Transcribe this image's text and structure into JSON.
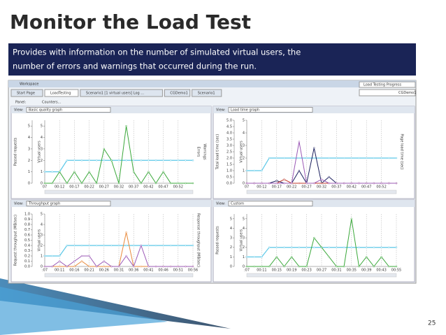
{
  "slide": {
    "title": "Monitor the Load Test",
    "description": [
      "Provides with information on the number of simulated virtual users, the",
      "number of errors and warnings that occurred during the run."
    ],
    "page": "25"
  },
  "ui": {
    "workspace": "Workspace",
    "tabs": [
      "Start Page",
      "LoadTesting",
      "Scenario1 [1 virtual users] Log ...",
      "CGDemo1",
      "Scenario1"
    ],
    "progress": "Load Testing Progress",
    "project": "CGDemo1",
    "panel": "Panel:",
    "counters": "Counters...",
    "view": "View:"
  },
  "charts": [
    {
      "type": "line",
      "view": "Basic quality graph",
      "ylabel": "Passed requests",
      "y2label": "Virtual users",
      "right_labels": [
        "Errors",
        "Warnings"
      ],
      "ylim": [
        0,
        5.5
      ],
      "yticks": [
        0,
        1,
        2,
        3,
        4,
        5
      ],
      "y2lim": [
        0,
        5.5
      ],
      "y2ticks": [
        0,
        1,
        2,
        3,
        4,
        5
      ],
      "x": [
        0,
        1,
        2,
        3,
        4,
        5,
        6,
        7,
        8,
        9,
        10,
        11,
        12,
        13,
        14,
        15,
        16,
        17,
        18,
        19,
        20
      ],
      "xlim": [
        0,
        20
      ],
      "xticks": [
        {
          "value": 0,
          "label": "07"
        },
        {
          "value": 2,
          "label": "00:12"
        },
        {
          "value": 4,
          "label": "00:17"
        },
        {
          "value": 6,
          "label": "00:22"
        },
        {
          "value": 8,
          "label": "00:27"
        },
        {
          "value": 10,
          "label": "00:32"
        },
        {
          "value": 12,
          "label": "00:37"
        },
        {
          "value": 14,
          "label": "00:42"
        },
        {
          "value": 16,
          "label": "00:47"
        },
        {
          "value": 18,
          "label": "00:52"
        }
      ],
      "series": [
        {
          "name": "Virtual users",
          "color": "#5bc8e8",
          "axis": "y2",
          "values": [
            1,
            1,
            1,
            2,
            2,
            2,
            2,
            2,
            2,
            2,
            2,
            2,
            2,
            2,
            2,
            2,
            2,
            2,
            2,
            2,
            2
          ]
        },
        {
          "name": "Passed requests",
          "color": "#3aa83a",
          "values": [
            0,
            0,
            1,
            0,
            1,
            0,
            1,
            0,
            3,
            2,
            0,
            5,
            1,
            0,
            1,
            0,
            1,
            0,
            0,
            0,
            0
          ]
        }
      ]
    },
    {
      "type": "line",
      "view": "Load time graph",
      "ylabel": "Total load time (sec)",
      "y2label": "Virtual users",
      "right_labels": [
        "Page load time (sec)"
      ],
      "ylim": [
        0,
        5
      ],
      "yticks": [
        {
          "value": 0,
          "label": "0.0"
        },
        0.5,
        {
          "value": 1,
          "label": "1.0"
        },
        1.5,
        {
          "value": 2,
          "label": "2.0"
        },
        2.5,
        {
          "value": 3,
          "label": "3.0"
        },
        3.5,
        {
          "value": 4,
          "label": "4.0"
        },
        4.5,
        {
          "value": 5,
          "label": "5.0"
        }
      ],
      "y2lim": [
        0,
        5
      ],
      "y2ticks": [
        0,
        1,
        2,
        3,
        4,
        5
      ],
      "x": [
        0,
        1,
        2,
        3,
        4,
        5,
        6,
        7,
        8,
        9,
        10,
        11,
        12,
        13,
        14,
        15,
        16,
        17,
        18,
        19,
        20
      ],
      "xlim": [
        0,
        20
      ],
      "xticks": [
        {
          "value": 0,
          "label": "07"
        },
        {
          "value": 2,
          "label": "00:12"
        },
        {
          "value": 4,
          "label": "00:17"
        },
        {
          "value": 6,
          "label": "00:22"
        },
        {
          "value": 8,
          "label": "00:27"
        },
        {
          "value": 10,
          "label": "00:32"
        },
        {
          "value": 12,
          "label": "00:37"
        },
        {
          "value": 14,
          "label": "00:42"
        },
        {
          "value": 16,
          "label": "00:47"
        },
        {
          "value": 18,
          "label": "00:52"
        }
      ],
      "series": [
        {
          "name": "Virtual users",
          "color": "#5bc8e8",
          "axis": "y2",
          "values": [
            1,
            1,
            1,
            2,
            2,
            2,
            2,
            2,
            2,
            2,
            2,
            2,
            2,
            2,
            2,
            2,
            2,
            2,
            2,
            2,
            2
          ]
        },
        {
          "name": "Total load time",
          "color": "#1b1f5e",
          "values": [
            0,
            0,
            0,
            0,
            0.2,
            0,
            0,
            1,
            0,
            2.8,
            0,
            0.5,
            0,
            0,
            0,
            0,
            0,
            0,
            0,
            0,
            0
          ]
        },
        {
          "name": "Page load time",
          "color": "#c0392b",
          "values": [
            0,
            0,
            0,
            0,
            0,
            0.3,
            0,
            0,
            0,
            0,
            0,
            0,
            0,
            0,
            0,
            0,
            0,
            0,
            0,
            0,
            0
          ]
        },
        {
          "name": "Load time",
          "color": "#9b59b6",
          "values": [
            0,
            0,
            0,
            0,
            0,
            0,
            0,
            3.3,
            0,
            0,
            0.3,
            0,
            0,
            0,
            0,
            0,
            0,
            0,
            0,
            0,
            0
          ]
        }
      ]
    },
    {
      "type": "line",
      "view": "Throughput graph",
      "ylabel": "Request throughput (MB/sec)",
      "y2label": "Virtual users",
      "right_labels": [
        "Response throughput (MB/sec)"
      ],
      "ylim": [
        0,
        1
      ],
      "yticks": [
        {
          "value": 0,
          "label": "0.0"
        },
        0.1,
        0.2,
        0.3,
        0.4,
        0.5,
        0.6,
        0.7,
        0.8,
        0.9,
        {
          "value": 1,
          "label": "1.0"
        }
      ],
      "y2lim": [
        0,
        5
      ],
      "y2ticks": [
        0,
        1,
        2,
        3,
        4,
        5
      ],
      "x": [
        0,
        1,
        2,
        3,
        4,
        5,
        6,
        7,
        8,
        9,
        10,
        11,
        12,
        13,
        14,
        15,
        16,
        17,
        18,
        19,
        20
      ],
      "xlim": [
        0,
        20
      ],
      "xticks": [
        {
          "value": 0,
          "label": ":07"
        },
        {
          "value": 2,
          "label": "00:11"
        },
        {
          "value": 4,
          "label": "00:16"
        },
        {
          "value": 6,
          "label": "00:21"
        },
        {
          "value": 8,
          "label": "00:26"
        },
        {
          "value": 10,
          "label": "00:31"
        },
        {
          "value": 12,
          "label": "00:36"
        },
        {
          "value": 14,
          "label": "00:41"
        },
        {
          "value": 16,
          "label": "00:46"
        },
        {
          "value": 18,
          "label": "00:51"
        },
        {
          "value": 20,
          "label": "00:56"
        }
      ],
      "series": [
        {
          "name": "Virtual users",
          "color": "#5bc8e8",
          "axis": "y2",
          "values": [
            1,
            1,
            1,
            2,
            2,
            2,
            2,
            2,
            2,
            2,
            2,
            2,
            2,
            2,
            2,
            2,
            2,
            2,
            2,
            2,
            2
          ]
        },
        {
          "name": "Response throughput",
          "color": "#e8893a",
          "values": [
            0,
            0,
            0,
            0,
            0,
            0.1,
            0,
            0,
            0,
            0,
            0,
            0.65,
            0,
            0,
            0,
            0,
            0,
            0,
            0,
            0,
            0
          ]
        },
        {
          "name": "Request throughput",
          "color": "#9b59b6",
          "values": [
            0,
            0,
            0.1,
            0,
            0.1,
            0.2,
            0.2,
            0,
            0.1,
            0,
            0,
            0.2,
            0,
            0.4,
            0,
            0,
            0,
            0,
            0,
            0,
            0
          ]
        }
      ]
    },
    {
      "type": "line",
      "view": "Custom",
      "ylabel": "Passed requests",
      "y2label": "Virtual users",
      "right_labels": [],
      "ylim": [
        0,
        5.5
      ],
      "yticks": [
        0,
        1,
        2,
        3,
        4,
        5
      ],
      "y2lim": [
        0,
        5.5
      ],
      "y2ticks": [
        0,
        1,
        2,
        3,
        4,
        5
      ],
      "x": [
        0,
        1,
        2,
        3,
        4,
        5,
        6,
        7,
        8,
        9,
        10,
        11,
        12,
        13,
        14,
        15,
        16,
        17,
        18,
        19,
        20
      ],
      "xlim": [
        0,
        20
      ],
      "xticks": [
        {
          "value": 0,
          "label": ":07"
        },
        {
          "value": 2,
          "label": "00:11"
        },
        {
          "value": 4,
          "label": "00:15"
        },
        {
          "value": 6,
          "label": "00:19"
        },
        {
          "value": 8,
          "label": "00:23"
        },
        {
          "value": 10,
          "label": "00:27"
        },
        {
          "value": 12,
          "label": "00:31"
        },
        {
          "value": 14,
          "label": "00:35"
        },
        {
          "value": 16,
          "label": "00:39"
        },
        {
          "value": 18,
          "label": "00:43"
        },
        {
          "value": 20,
          "label": "00:55"
        }
      ],
      "series": [
        {
          "name": "Virtual users",
          "color": "#5bc8e8",
          "axis": "y2",
          "values": [
            1,
            1,
            1,
            2,
            2,
            2,
            2,
            2,
            2,
            2,
            2,
            2,
            2,
            2,
            2,
            2,
            2,
            2,
            2,
            2,
            2
          ]
        },
        {
          "name": "Passed requests",
          "color": "#3aa83a",
          "values": [
            0,
            0,
            0,
            0,
            1,
            0,
            1,
            0,
            0,
            3,
            2,
            1,
            0,
            0,
            5,
            0,
            1,
            0,
            1,
            0,
            0
          ]
        }
      ]
    }
  ]
}
